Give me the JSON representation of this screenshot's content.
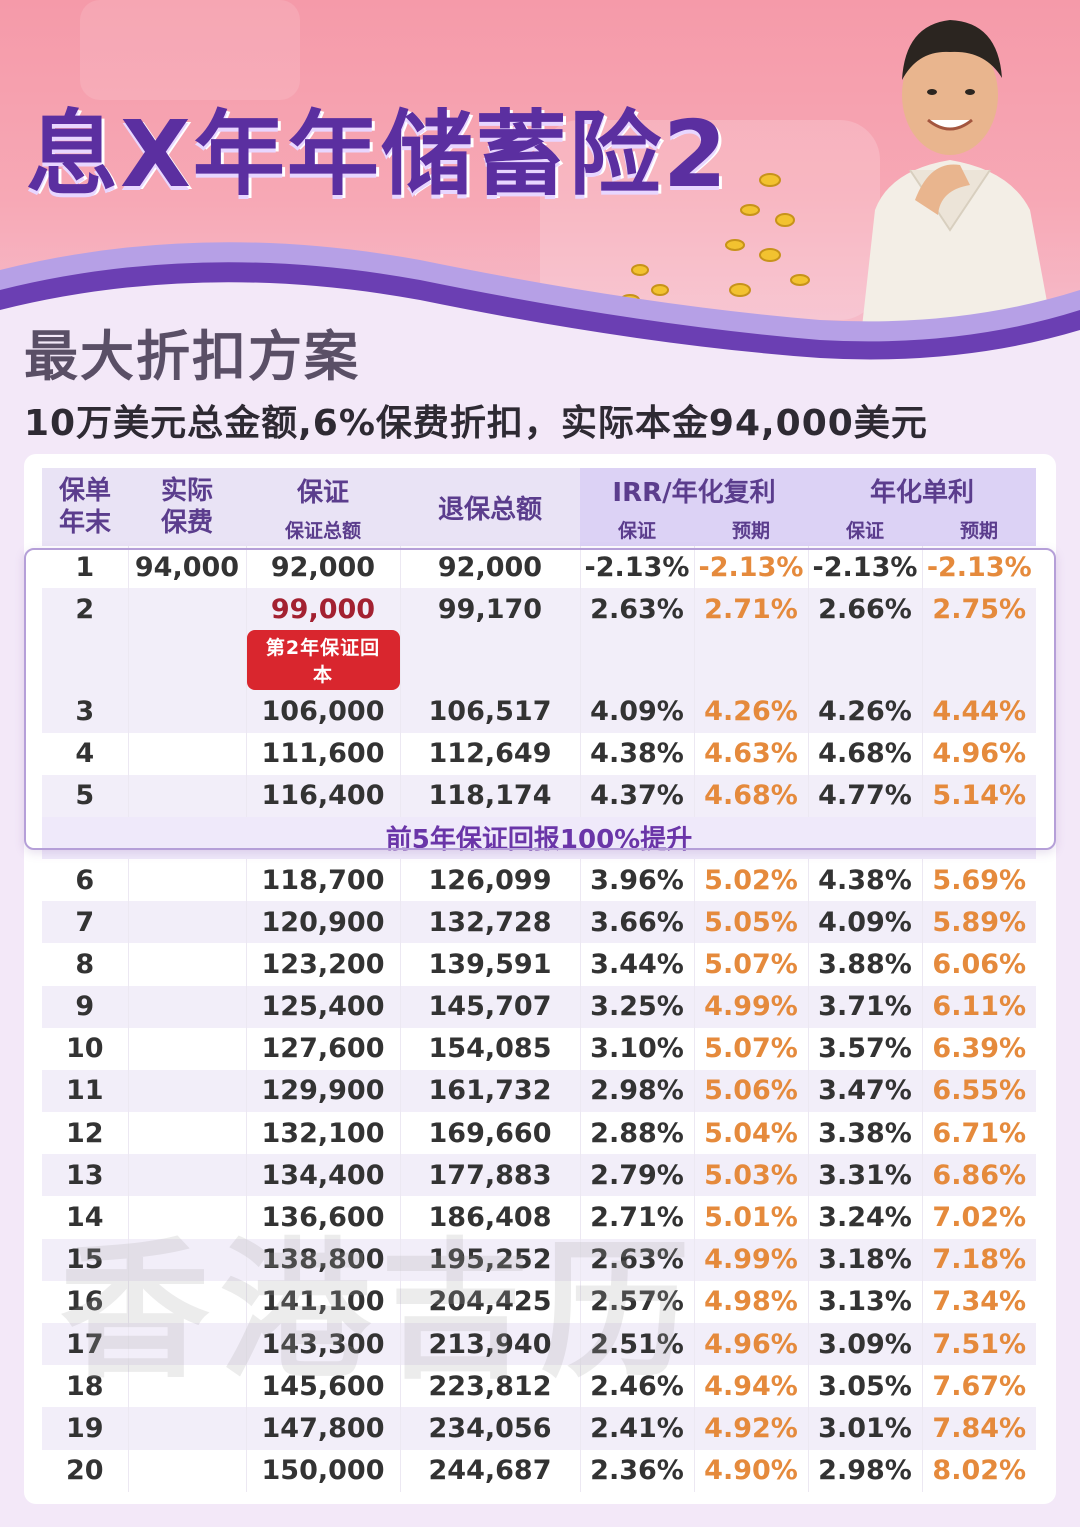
{
  "title": "息X年年储蓄险2",
  "subtitle": "最大折扣方案",
  "description": "10万美元总金额,6%保费折扣，实际本金94,000美元",
  "watermark_text": "香港吉历",
  "colors": {
    "title_purple": "#5b2fa0",
    "header_purple": "#dcd2f5",
    "predicted_orange": "#e58a3c",
    "badge_red": "#d9262e"
  },
  "table": {
    "headers": {
      "year": "保单\n年末",
      "premium": "实际\n保费",
      "guaranteed": "保证",
      "guaranteed_sub": "保证总额",
      "surrender": "退保总额",
      "irr": "IRR/年化复利",
      "simple": "年化单利",
      "sub_guaranteed": "保证",
      "sub_predicted": "预期"
    },
    "badge": "第2年保证回本",
    "highlight_note": "前5年保证回报100%提升",
    "rows": [
      {
        "year": "1",
        "premium": "94,000",
        "guaranteed": "92,000",
        "surrender": "92,000",
        "irr_g": "-2.13%",
        "irr_p": "-2.13%",
        "simple_g": "-2.13%",
        "simple_p": "-2.13%"
      },
      {
        "year": "2",
        "premium": "",
        "guaranteed": "99,000",
        "surrender": "99,170",
        "irr_g": "2.63%",
        "irr_p": "2.71%",
        "simple_g": "2.66%",
        "simple_p": "2.75%"
      },
      {
        "year": "3",
        "premium": "",
        "guaranteed": "106,000",
        "surrender": "106,517",
        "irr_g": "4.09%",
        "irr_p": "4.26%",
        "simple_g": "4.26%",
        "simple_p": "4.44%"
      },
      {
        "year": "4",
        "premium": "",
        "guaranteed": "111,600",
        "surrender": "112,649",
        "irr_g": "4.38%",
        "irr_p": "4.63%",
        "simple_g": "4.68%",
        "simple_p": "4.96%"
      },
      {
        "year": "5",
        "premium": "",
        "guaranteed": "116,400",
        "surrender": "118,174",
        "irr_g": "4.37%",
        "irr_p": "4.68%",
        "simple_g": "4.77%",
        "simple_p": "5.14%"
      },
      {
        "year": "6",
        "premium": "",
        "guaranteed": "118,700",
        "surrender": "126,099",
        "irr_g": "3.96%",
        "irr_p": "5.02%",
        "simple_g": "4.38%",
        "simple_p": "5.69%"
      },
      {
        "year": "7",
        "premium": "",
        "guaranteed": "120,900",
        "surrender": "132,728",
        "irr_g": "3.66%",
        "irr_p": "5.05%",
        "simple_g": "4.09%",
        "simple_p": "5.89%"
      },
      {
        "year": "8",
        "premium": "",
        "guaranteed": "123,200",
        "surrender": "139,591",
        "irr_g": "3.44%",
        "irr_p": "5.07%",
        "simple_g": "3.88%",
        "simple_p": "6.06%"
      },
      {
        "year": "9",
        "premium": "",
        "guaranteed": "125,400",
        "surrender": "145,707",
        "irr_g": "3.25%",
        "irr_p": "4.99%",
        "simple_g": "3.71%",
        "simple_p": "6.11%"
      },
      {
        "year": "10",
        "premium": "",
        "guaranteed": "127,600",
        "surrender": "154,085",
        "irr_g": "3.10%",
        "irr_p": "5.07%",
        "simple_g": "3.57%",
        "simple_p": "6.39%"
      },
      {
        "year": "11",
        "premium": "",
        "guaranteed": "129,900",
        "surrender": "161,732",
        "irr_g": "2.98%",
        "irr_p": "5.06%",
        "simple_g": "3.47%",
        "simple_p": "6.55%"
      },
      {
        "year": "12",
        "premium": "",
        "guaranteed": "132,100",
        "surrender": "169,660",
        "irr_g": "2.88%",
        "irr_p": "5.04%",
        "simple_g": "3.38%",
        "simple_p": "6.71%"
      },
      {
        "year": "13",
        "premium": "",
        "guaranteed": "134,400",
        "surrender": "177,883",
        "irr_g": "2.79%",
        "irr_p": "5.03%",
        "simple_g": "3.31%",
        "simple_p": "6.86%"
      },
      {
        "year": "14",
        "premium": "",
        "guaranteed": "136,600",
        "surrender": "186,408",
        "irr_g": "2.71%",
        "irr_p": "5.01%",
        "simple_g": "3.24%",
        "simple_p": "7.02%"
      },
      {
        "year": "15",
        "premium": "",
        "guaranteed": "138,800",
        "surrender": "195,252",
        "irr_g": "2.63%",
        "irr_p": "4.99%",
        "simple_g": "3.18%",
        "simple_p": "7.18%"
      },
      {
        "year": "16",
        "premium": "",
        "guaranteed": "141,100",
        "surrender": "204,425",
        "irr_g": "2.57%",
        "irr_p": "4.98%",
        "simple_g": "3.13%",
        "simple_p": "7.34%"
      },
      {
        "year": "17",
        "premium": "",
        "guaranteed": "143,300",
        "surrender": "213,940",
        "irr_g": "2.51%",
        "irr_p": "4.96%",
        "simple_g": "3.09%",
        "simple_p": "7.51%"
      },
      {
        "year": "18",
        "premium": "",
        "guaranteed": "145,600",
        "surrender": "223,812",
        "irr_g": "2.46%",
        "irr_p": "4.94%",
        "simple_g": "3.05%",
        "simple_p": "7.67%"
      },
      {
        "year": "19",
        "premium": "",
        "guaranteed": "147,800",
        "surrender": "234,056",
        "irr_g": "2.41%",
        "irr_p": "4.92%",
        "simple_g": "3.01%",
        "simple_p": "7.84%"
      },
      {
        "year": "20",
        "premium": "",
        "guaranteed": "150,000",
        "surrender": "244,687",
        "irr_g": "2.36%",
        "irr_p": "4.90%",
        "simple_g": "2.98%",
        "simple_p": "8.02%"
      }
    ]
  }
}
